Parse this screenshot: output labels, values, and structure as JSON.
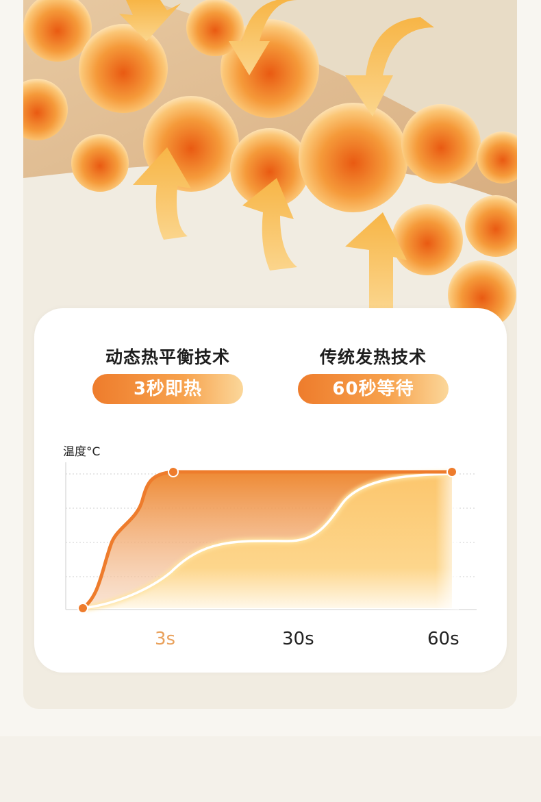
{
  "comparison": [
    {
      "title": "动态热平衡技术",
      "badge": "3秒即热"
    },
    {
      "title": "传统发热技术",
      "badge": "60秒等待"
    }
  ],
  "colors": {
    "accent": "#ee7c2c",
    "accent_light": "#fbd79a",
    "background": "#f1ece1"
  },
  "chart_data": {
    "type": "line",
    "ylabel": "温度°C",
    "x_ticks": [
      "3s",
      "30s",
      "60s"
    ],
    "highlight_tick": "3s",
    "grid": true,
    "series": [
      {
        "x": [
          0,
          3,
          60
        ],
        "values": [
          0,
          100,
          100
        ],
        "unit": "% of max temperature",
        "style": "orange line with dots, filled area"
      },
      {
        "x": [
          0,
          3,
          30,
          60
        ],
        "values": [
          0,
          30,
          50,
          100
        ],
        "unit": "% of max temperature",
        "style": "white glowing line"
      }
    ]
  }
}
